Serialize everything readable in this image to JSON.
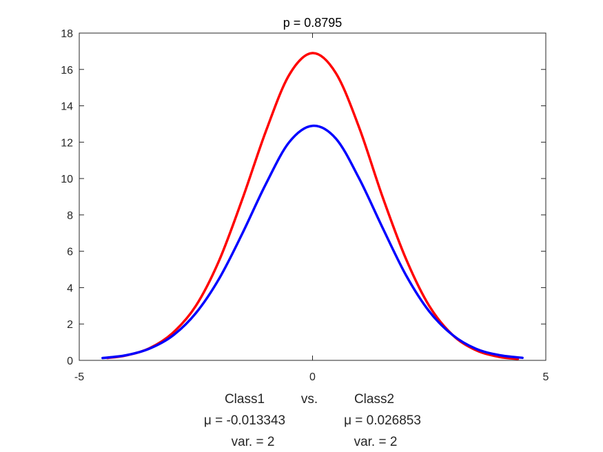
{
  "chart_data": {
    "type": "line",
    "title": "p = 0.8795",
    "xlabel": "",
    "ylabel": "",
    "xlim": [
      -5,
      5
    ],
    "ylim": [
      0,
      18
    ],
    "x_ticks": [
      -5,
      0,
      5
    ],
    "y_ticks": [
      0,
      2,
      4,
      6,
      8,
      10,
      12,
      14,
      16,
      18
    ],
    "grid": false,
    "series": [
      {
        "color": "#ff0000",
        "x": [
          -4.4,
          -4.0,
          -3.5,
          -3.0,
          -2.5,
          -2.0,
          -1.5,
          -1.0,
          -0.5,
          0.0,
          0.5,
          1.0,
          1.5,
          2.0,
          2.5,
          3.0,
          3.5,
          4.0,
          4.4
        ],
        "values": [
          0.13,
          0.27,
          0.66,
          1.5,
          3.0,
          5.5,
          8.9,
          12.6,
          15.7,
          16.9,
          15.8,
          12.8,
          9.0,
          5.6,
          3.0,
          1.4,
          0.56,
          0.19,
          0.08
        ]
      },
      {
        "color": "#0000ff",
        "x": [
          -4.5,
          -4.0,
          -3.5,
          -3.0,
          -2.5,
          -2.0,
          -1.5,
          -1.0,
          -0.5,
          0.0,
          0.5,
          1.0,
          1.5,
          2.0,
          2.5,
          3.0,
          3.5,
          4.0,
          4.5
        ],
        "values": [
          0.13,
          0.28,
          0.64,
          1.35,
          2.6,
          4.5,
          7.0,
          9.7,
          12.0,
          12.9,
          12.2,
          10.0,
          7.3,
          4.7,
          2.7,
          1.4,
          0.64,
          0.29,
          0.14
        ]
      }
    ]
  },
  "caption": {
    "class1": "Class1",
    "vs": "vs.",
    "class2": "Class2",
    "mu1": "μ = -0.013343",
    "mu2": "μ = 0.026853",
    "var1": "var. = 2",
    "var2": "var. = 2"
  }
}
